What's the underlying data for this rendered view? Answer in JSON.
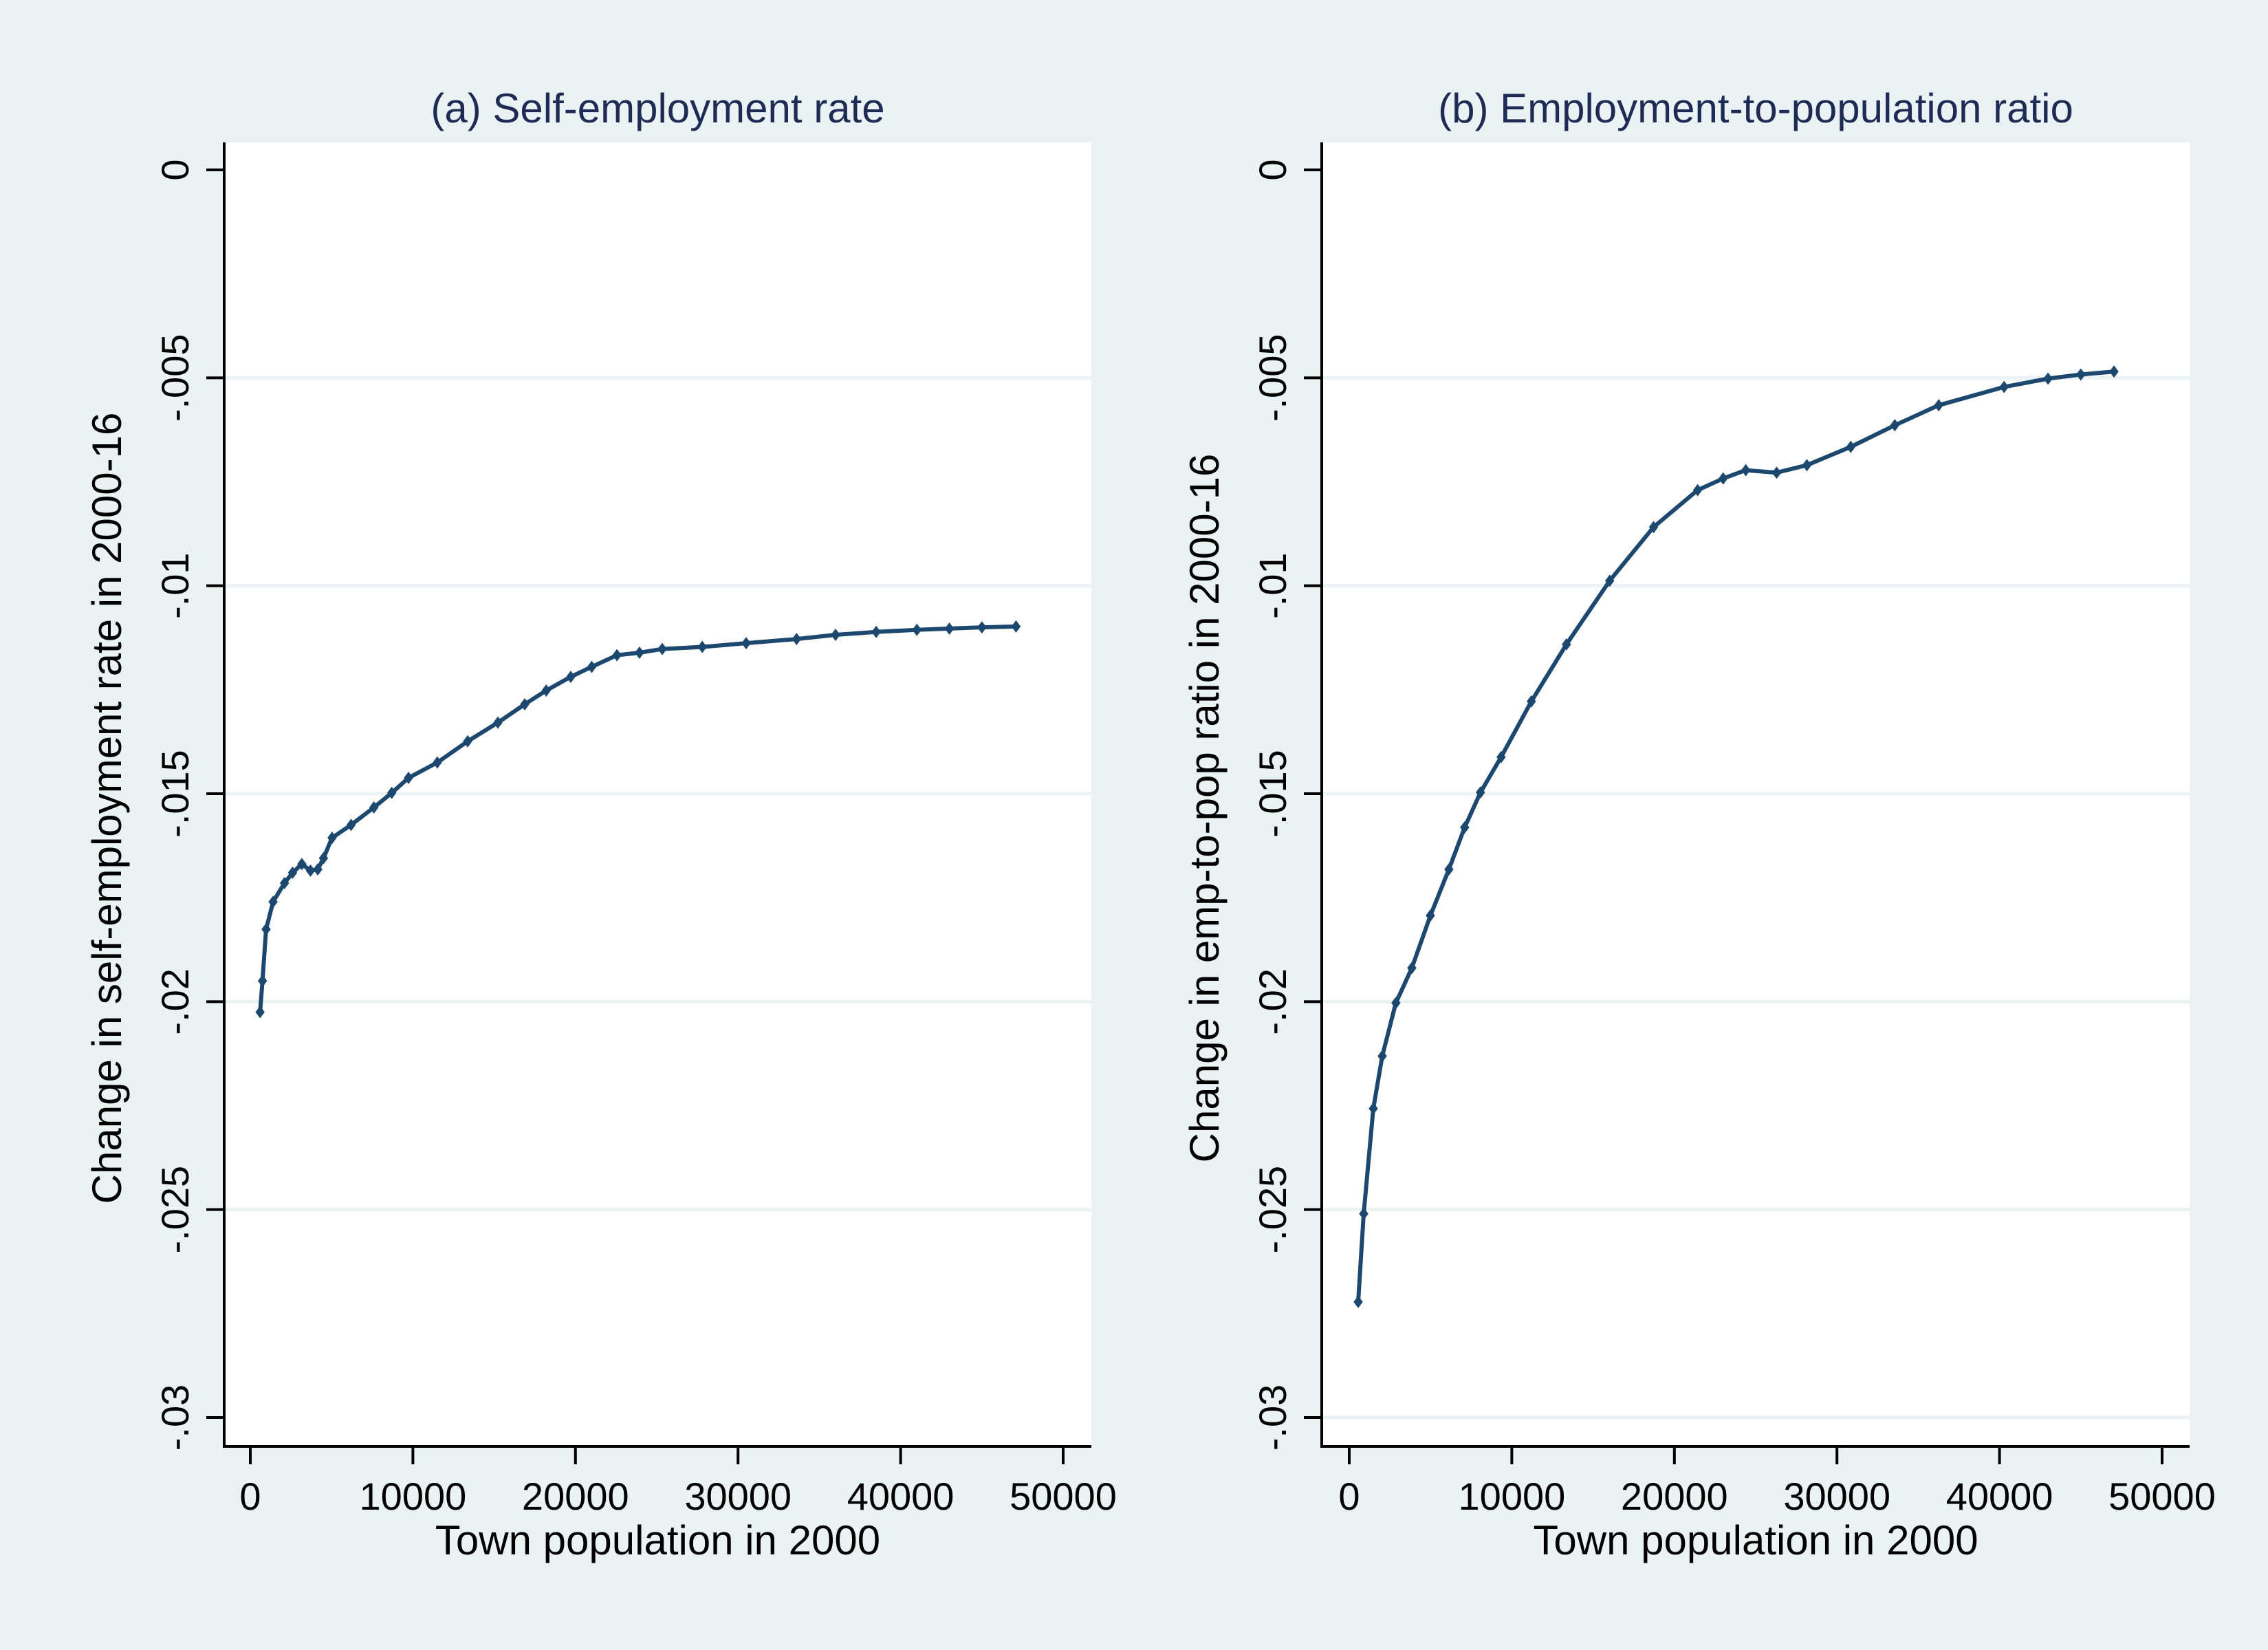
{
  "figure": {
    "background_color": "#eaf2f3",
    "plot_background_color": "#ffffff",
    "series_color": "#1c4870",
    "title_color": "#1e2b55"
  },
  "chart_data": [
    {
      "type": "line",
      "panel": "a",
      "title": "(a) Self-employment rate",
      "xlabel": "Town population in 2000",
      "ylabel": "Change in self-employment rate in 2000-16",
      "xlim": [
        0,
        50000
      ],
      "ylim": [
        -0.03,
        0
      ],
      "xticks": [
        0,
        10000,
        20000,
        30000,
        40000,
        50000
      ],
      "xtick_labels": [
        "0",
        "10000",
        "20000",
        "30000",
        "40000",
        "50000"
      ],
      "yticks": [
        0,
        -0.005,
        -0.01,
        -0.015,
        -0.02,
        -0.025,
        -0.03
      ],
      "ytick_labels": [
        "0",
        "-.005",
        "-.01",
        "-.015",
        "-.02",
        "-.025",
        "-.03"
      ],
      "grid": true,
      "grid_values": [
        -0.005,
        -0.01,
        -0.015,
        -0.02,
        -0.025
      ],
      "marker": "diamond",
      "legend": "none",
      "series": [
        {
          "name": "Change in self-employment rate",
          "x": [
            600,
            750,
            970,
            1400,
            2100,
            2600,
            3170,
            3700,
            4150,
            4500,
            5030,
            6200,
            7600,
            8700,
            9730,
            11500,
            13370,
            15230,
            16880,
            18200,
            19710,
            21000,
            22550,
            23940,
            25340,
            27800,
            30500,
            33600,
            36000,
            38500,
            41000,
            43000,
            45000,
            47100
          ],
          "y": [
            -0.02025,
            -0.0195,
            -0.01826,
            -0.0176,
            -0.01715,
            -0.0169,
            -0.01669,
            -0.01685,
            -0.01682,
            -0.01655,
            -0.01606,
            -0.01575,
            -0.01533,
            -0.01498,
            -0.01462,
            -0.01425,
            -0.01374,
            -0.01329,
            -0.01285,
            -0.01252,
            -0.01219,
            -0.01195,
            -0.01167,
            -0.01161,
            -0.01152,
            -0.01147,
            -0.01138,
            -0.01128,
            -0.01118,
            -0.01111,
            -0.01106,
            -0.01103,
            -0.011,
            -0.01098
          ]
        }
      ]
    },
    {
      "type": "line",
      "panel": "b",
      "title": "(b) Employment-to-population ratio",
      "xlabel": "Town population in 2000",
      "ylabel": "Change in emp-to-pop ratio in 2000-16",
      "xlim": [
        0,
        50000
      ],
      "ylim": [
        -0.03,
        0
      ],
      "xticks": [
        0,
        10000,
        20000,
        30000,
        40000,
        50000
      ],
      "xtick_labels": [
        "0",
        "10000",
        "20000",
        "30000",
        "40000",
        "50000"
      ],
      "yticks": [
        0,
        -0.005,
        -0.01,
        -0.015,
        -0.02,
        -0.025,
        -0.03
      ],
      "ytick_labels": [
        "0",
        "-.005",
        "-.01",
        "-.015",
        "-.02",
        "-.025",
        "-.03"
      ],
      "grid": true,
      "grid_values": [
        -0.005,
        -0.01,
        -0.015,
        -0.02,
        -0.025,
        -0.03
      ],
      "marker": "diamond",
      "legend": "none",
      "series": [
        {
          "name": "Change in emp-to-pop ratio",
          "x": [
            550,
            890,
            1480,
            2030,
            2870,
            3850,
            4990,
            6130,
            7100,
            8070,
            9340,
            11200,
            13360,
            16020,
            18720,
            21430,
            23000,
            24390,
            26290,
            28150,
            30850,
            33560,
            36260,
            40280,
            42980,
            45000,
            47040
          ],
          "y": [
            -0.02722,
            -0.0251,
            -0.02257,
            -0.02131,
            -0.02003,
            -0.01919,
            -0.01793,
            -0.01682,
            -0.01581,
            -0.01497,
            -0.01412,
            -0.01278,
            -0.01141,
            -0.00988,
            -0.00859,
            -0.0077,
            -0.00742,
            -0.00722,
            -0.00728,
            -0.0071,
            -0.00666,
            -0.00614,
            -0.00566,
            -0.00522,
            -0.00502,
            -0.00492,
            -0.00485
          ]
        }
      ]
    }
  ]
}
